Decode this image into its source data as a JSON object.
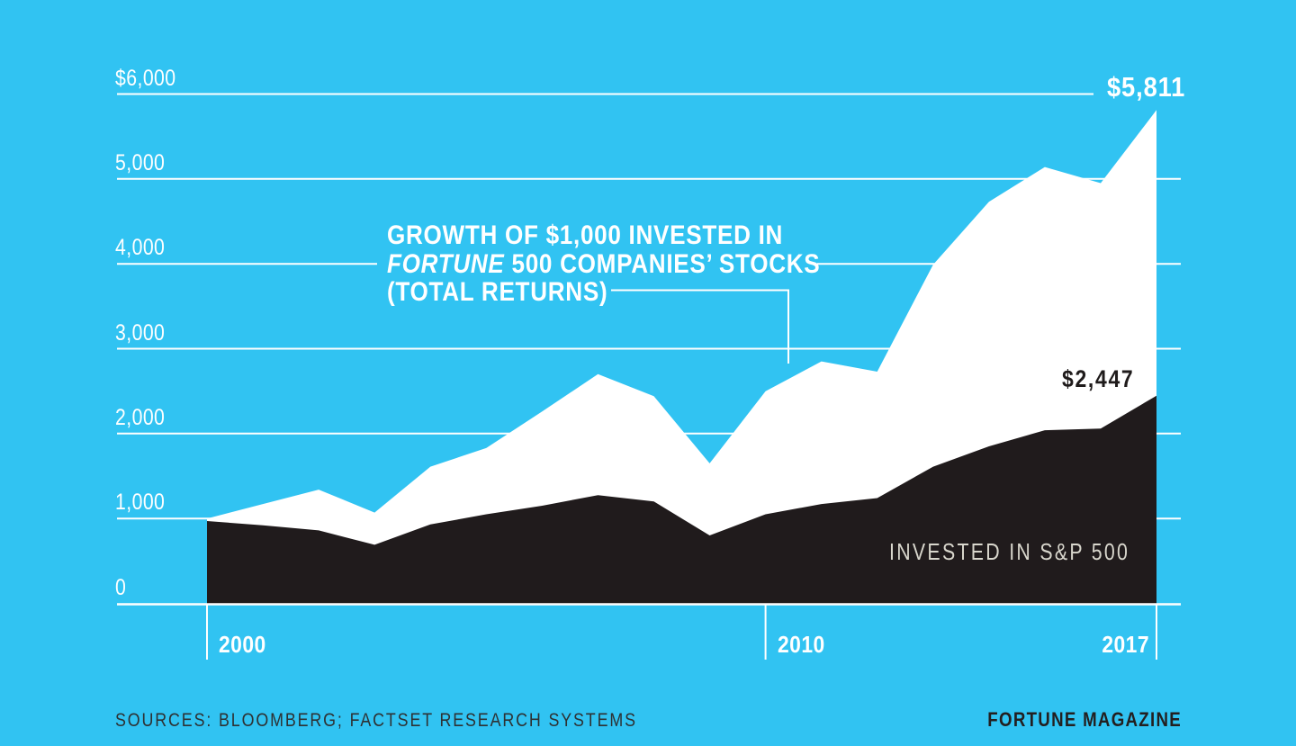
{
  "colors": {
    "background": "#31C3F2",
    "fortune_area": "#FFFFFF",
    "sp500_area": "#201B1C",
    "gridline": "#FFFFFF",
    "dark_text": "#1F1B1B",
    "sp500_label_text": "#D8D6CC",
    "sources_text": "#2E3133"
  },
  "annotation": {
    "line1": "GROWTH OF $1,000 INVESTED IN",
    "line2_italic": "FORTUNE",
    "line2_rest": " 500 COMPANIES’ STOCKS",
    "line3": "(TOTAL RETURNS)"
  },
  "labels": {
    "fortune_end_value": "$5,811",
    "sp500_end_value": "$2,447",
    "sp500_series": "INVESTED IN S&P 500"
  },
  "y_axis": {
    "ticks": [
      {
        "label": "$6,000",
        "value": 6000
      },
      {
        "label": "5,000",
        "value": 5000
      },
      {
        "label": "4,000",
        "value": 4000
      },
      {
        "label": "3,000",
        "value": 3000
      },
      {
        "label": "2,000",
        "value": 2000
      },
      {
        "label": "1,000",
        "value": 1000
      },
      {
        "label": "0",
        "value": 0
      }
    ]
  },
  "x_axis": {
    "ticks": [
      {
        "label": "2000",
        "year": 2000
      },
      {
        "label": "2010",
        "year": 2010
      },
      {
        "label": "2017",
        "year": 2017
      }
    ]
  },
  "footer": {
    "sources": "SOURCES: BLOOMBERG; FACTSET RESEARCH SYSTEMS",
    "credit": "FORTUNE MAGAZINE"
  },
  "chart_data": {
    "type": "area",
    "title": "Growth of $1,000 invested in Fortune 500 companies’ stocks (total returns) vs. invested in S&P 500",
    "x": [
      2000,
      2001,
      2002,
      2003,
      2004,
      2005,
      2006,
      2007,
      2008,
      2009,
      2010,
      2011,
      2012,
      2013,
      2014,
      2015,
      2016,
      2017
    ],
    "series": [
      {
        "name": "Fortune 500 companies’ stocks (total returns)",
        "color": "#FFFFFF",
        "end_label": "$5,811",
        "values": [
          1000,
          1170,
          1340,
          1070,
          1610,
          1830,
          2260,
          2700,
          2440,
          1650,
          2500,
          2850,
          2730,
          3990,
          4730,
          5140,
          4950,
          5811
        ]
      },
      {
        "name": "Invested in S&P 500",
        "color": "#201B1C",
        "end_label": "$2,447",
        "values": [
          970,
          920,
          860,
          690,
          930,
          1050,
          1150,
          1275,
          1200,
          800,
          1050,
          1170,
          1240,
          1610,
          1850,
          2040,
          2060,
          2447
        ]
      }
    ],
    "xlim": [
      2000,
      2017
    ],
    "ylim": [
      0,
      6000
    ],
    "y_tick_step": 1000,
    "grid": true,
    "legend_position": "annotations-on-chart"
  }
}
